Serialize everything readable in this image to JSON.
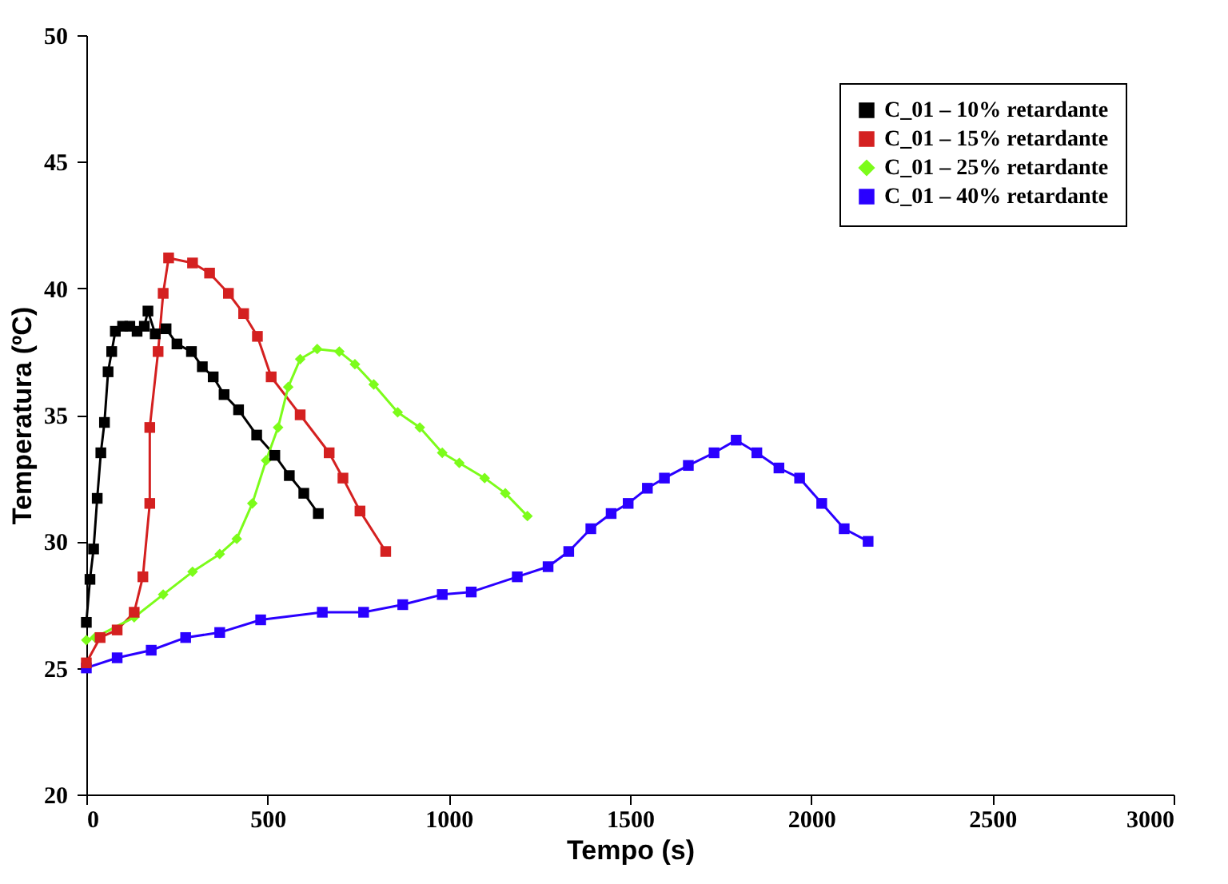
{
  "chart_data": {
    "type": "line",
    "xlabel": "Tempo (s)",
    "ylabel": "Temperatura (ºC)",
    "xlim": [
      0,
      3000
    ],
    "xticks": [
      0,
      500,
      1000,
      1500,
      2000,
      2500,
      3000
    ],
    "ylim": [
      20,
      50
    ],
    "yticks": [
      20,
      25,
      30,
      35,
      40,
      45,
      50
    ],
    "grid": false,
    "legend": "top right",
    "marker": "square",
    "line_style": "solid",
    "series": [
      {
        "name": "C_01 – 10% retardante",
        "color": "#000000",
        "x": [
          0,
          10,
          20,
          30,
          40,
          50,
          60,
          70,
          80,
          100,
          120,
          140,
          160,
          170,
          190,
          220,
          250,
          290,
          320,
          350,
          380,
          420,
          470,
          520,
          560,
          600,
          640
        ],
        "values": [
          26.8,
          28.5,
          29.7,
          31.7,
          33.5,
          34.7,
          36.7,
          37.5,
          38.3,
          38.5,
          38.5,
          38.3,
          38.5,
          39.1,
          38.2,
          38.4,
          37.8,
          37.5,
          36.9,
          36.5,
          35.8,
          35.2,
          34.2,
          33.4,
          32.6,
          31.9,
          31.1
        ]
      },
      {
        "name": "C_01 – 15% retardante",
        "color": "#d42020",
        "x": [
          0,
          38,
          85,
          132,
          156,
          175,
          175,
          198,
          212,
          227,
          293,
          340,
          392,
          434,
          472,
          510,
          590,
          670,
          708,
          755,
          826
        ],
        "values": [
          25.2,
          26.2,
          26.5,
          27.2,
          28.6,
          31.5,
          34.5,
          37.5,
          39.8,
          41.2,
          41.0,
          40.6,
          39.8,
          39.0,
          38.1,
          36.5,
          35.0,
          33.5,
          32.5,
          31.2,
          29.6
        ]
      },
      {
        "name": "C_01 – 25% retardante",
        "color": "#7cfc1a",
        "marker": "diamond",
        "x": [
          0,
          24,
          132,
          212,
          293,
          368,
          415,
          458,
          496,
          529,
          557,
          590,
          637,
          698,
          741,
          793,
          859,
          920,
          982,
          1029,
          1099,
          1156,
          1217
        ],
        "values": [
          26.1,
          26.2,
          27.0,
          27.9,
          28.8,
          29.5,
          30.1,
          31.5,
          33.2,
          34.5,
          36.1,
          37.2,
          37.6,
          37.5,
          37.0,
          36.2,
          35.1,
          34.5,
          33.5,
          33.1,
          32.5,
          31.9,
          31.0
        ]
      },
      {
        "name": "C_01 – 40% retardante",
        "color": "#2a00ff",
        "x": [
          0,
          85,
          179,
          274,
          368,
          481,
          651,
          765,
          873,
          982,
          1062,
          1189,
          1274,
          1331,
          1392,
          1448,
          1495,
          1548,
          1595,
          1661,
          1732,
          1793,
          1850,
          1911,
          1968,
          2029,
          2091,
          2157
        ],
        "values": [
          25.0,
          25.4,
          25.7,
          26.2,
          26.4,
          26.9,
          27.2,
          27.2,
          27.5,
          27.9,
          28.0,
          28.6,
          29.0,
          29.6,
          30.5,
          31.1,
          31.5,
          32.1,
          32.5,
          33.0,
          33.5,
          34.0,
          33.5,
          32.9,
          32.5,
          31.5,
          30.5,
          30.0
        ]
      }
    ]
  }
}
